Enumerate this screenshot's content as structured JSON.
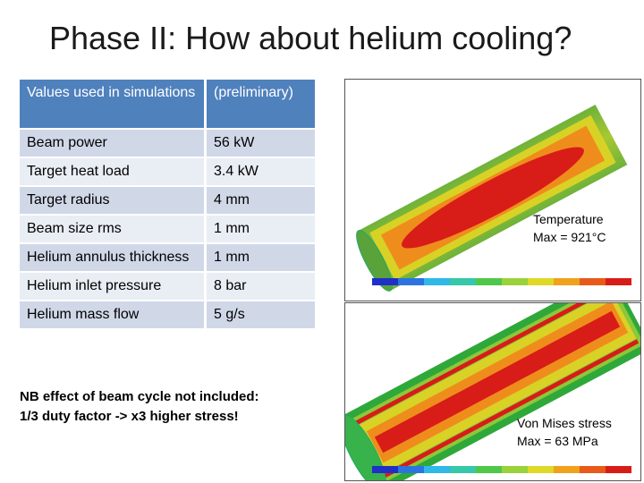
{
  "slide": {
    "title": "Phase II: How about helium cooling?"
  },
  "table": {
    "header": [
      "Values used in simulations",
      "(preliminary)"
    ],
    "rows": [
      {
        "label": "Beam power",
        "value": "56 kW"
      },
      {
        "label": "Target heat load",
        "value": "3.4 kW"
      },
      {
        "label": "Target radius",
        "value": "4 mm"
      },
      {
        "label": "Beam size rms",
        "value": "1 mm"
      },
      {
        "label": "Helium annulus thickness",
        "value": "1 mm"
      },
      {
        "label": "Helium inlet pressure",
        "value": "8 bar"
      },
      {
        "label": "Helium mass flow",
        "value": "5 g/s"
      }
    ]
  },
  "note": {
    "line1": "NB effect of beam cycle not included:",
    "line2": "1/3 duty factor -> x3 higher stress!"
  },
  "sim_temperature": {
    "label_line1": "Temperature",
    "label_line2": "Max = 921°C"
  },
  "sim_stress": {
    "label_line1": "Von Mises stress",
    "label_line2": "Max = 63 MPa"
  },
  "colors": {
    "header_blue": "#4f81bd",
    "row_odd": "#d0d8e8",
    "row_even": "#e9edf4"
  }
}
